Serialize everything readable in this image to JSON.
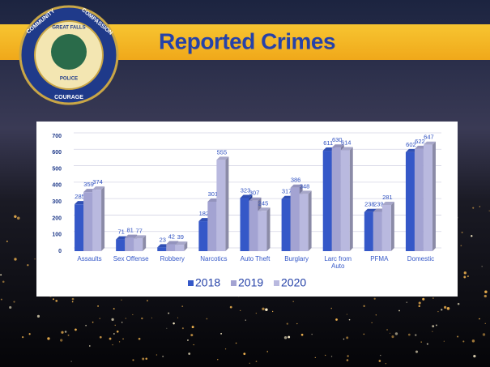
{
  "slide": {
    "title": "Reported Crimes",
    "badge": [
      "COMMUNITY",
      "COMPASSION",
      "COURAGE",
      "GREAT FALLS",
      "POLICE"
    ]
  },
  "chart_data": {
    "type": "bar",
    "categories": [
      "Assaults",
      "Sex Offense",
      "Robbery",
      "Narcotics",
      "Auto Theft",
      "Burglary",
      "Larc from Auto",
      "PFMA",
      "Domestic"
    ],
    "series": [
      {
        "name": "2018",
        "color": "#3558c8",
        "values": [
          285,
          71,
          23,
          182,
          323,
          317,
          611,
          238,
          602
        ]
      },
      {
        "name": "2019",
        "color": "#a3a3d2",
        "values": [
          359,
          81,
          42,
          301,
          307,
          386,
          630,
          239,
          622
        ]
      },
      {
        "name": "2020",
        "color": "#b9b9df",
        "values": [
          374,
          77,
          39,
          555,
          245,
          348,
          614,
          281,
          647
        ]
      }
    ],
    "ylim": [
      0,
      700
    ],
    "yticks": [
      0,
      100,
      200,
      300,
      400,
      500,
      600,
      700
    ],
    "grid": true,
    "legend": "bottom"
  }
}
